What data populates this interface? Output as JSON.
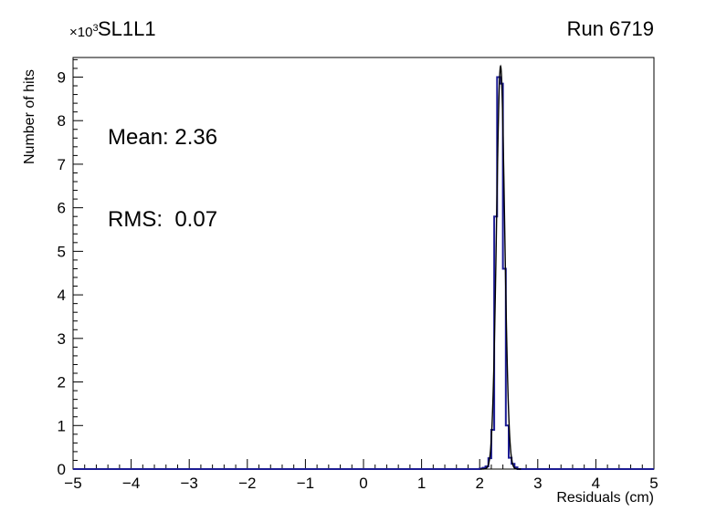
{
  "header": {
    "title": "SL1L1",
    "run_label": "Run 6719"
  },
  "axes": {
    "y_scale_prefix": "×10",
    "y_scale_exp": "3",
    "x_title": "Residuals (cm)",
    "y_title": "Number of hits"
  },
  "stats": {
    "mean": "Mean: 2.36",
    "rms": "RMS:  0.07"
  },
  "chart_data": {
    "type": "bar",
    "subtype": "step-histogram-with-gaussian-fit",
    "title": "SL1L1",
    "run": "Run 6719",
    "xlabel": "Residuals (cm)",
    "ylabel": "Number of hits",
    "y_scale_factor": 1000,
    "xlim": [
      -5,
      5
    ],
    "ylim": [
      0,
      9450
    ],
    "x_tick_values": [
      -5,
      -4,
      -3,
      -2,
      -1,
      0,
      1,
      2,
      3,
      4,
      5
    ],
    "x_tick_labels": [
      "−5",
      "−4",
      "−3",
      "−2",
      "−1",
      "0",
      "1",
      "2",
      "3",
      "4",
      "5"
    ],
    "x_minor_step": 0.2,
    "y_tick_values_thousands": [
      0,
      1,
      2,
      3,
      4,
      5,
      6,
      7,
      8,
      9
    ],
    "y_tick_labels": [
      "0",
      "1",
      "2",
      "3",
      "4",
      "5",
      "6",
      "7",
      "8",
      "9"
    ],
    "y_minor_step_thousands": 0.2,
    "annotations": {
      "mean": 2.36,
      "rms": 0.07
    },
    "histogram": {
      "bin_start": 2.0,
      "bin_width": 0.05,
      "counts": [
        10,
        30,
        60,
        250,
        900,
        5800,
        9000,
        8850,
        4600,
        1000,
        260,
        120,
        40,
        0
      ],
      "color": "#1c1c94"
    },
    "fit": {
      "shape": "gaussian",
      "mean": 2.36,
      "sigma": 0.07,
      "amplitude": 9250,
      "color": "#000000"
    }
  }
}
